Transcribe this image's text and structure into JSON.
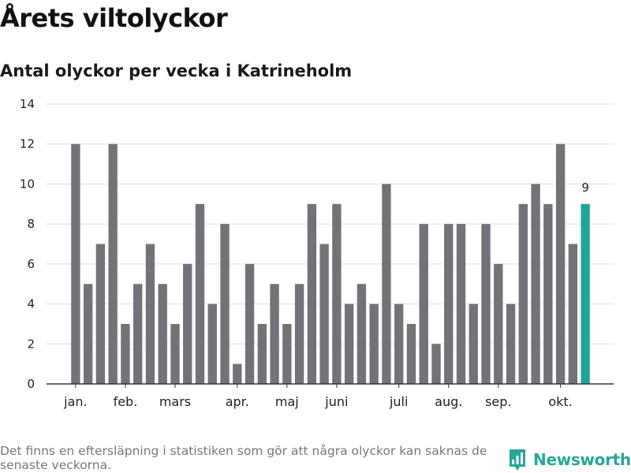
{
  "header": {
    "title": "Årets viltolyckor",
    "subtitle": "Antal olyckor per vecka i Katrineholm"
  },
  "chart_data": {
    "type": "bar",
    "title": "Årets viltolyckor",
    "subtitle": "Antal olyckor per vecka i Katrineholm",
    "xlabel": "",
    "ylabel": "",
    "ylim": [
      0,
      14
    ],
    "yticks": [
      0,
      2,
      4,
      6,
      8,
      10,
      12,
      14
    ],
    "grid": true,
    "values": [
      12,
      5,
      7,
      12,
      3,
      5,
      7,
      5,
      3,
      6,
      9,
      4,
      8,
      1,
      6,
      3,
      5,
      3,
      5,
      9,
      7,
      9,
      4,
      5,
      4,
      10,
      4,
      3,
      8,
      2,
      8,
      8,
      4,
      8,
      6,
      4,
      9,
      10,
      9,
      12,
      7,
      9
    ],
    "month_labels": [
      {
        "label": "jan.",
        "week": 1
      },
      {
        "label": "feb.",
        "week": 5
      },
      {
        "label": "mars",
        "week": 9
      },
      {
        "label": "apr.",
        "week": 14
      },
      {
        "label": "maj",
        "week": 18
      },
      {
        "label": "juni",
        "week": 22
      },
      {
        "label": "juli",
        "week": 27
      },
      {
        "label": "aug.",
        "week": 31
      },
      {
        "label": "sep.",
        "week": 35
      },
      {
        "label": "okt.",
        "week": 40
      }
    ],
    "highlight_index": 41,
    "highlight_label": "9",
    "colors": {
      "bar": "#737278",
      "highlight": "#21a59a",
      "grid": "#dddddd",
      "axis": "#333333"
    }
  },
  "footer": {
    "note": "Det finns en eftersläpning i statistiken som gör att några olyckor kan saknas de senaste veckorna.",
    "brand": "Newsworthy",
    "brand_color": "#27a797"
  }
}
